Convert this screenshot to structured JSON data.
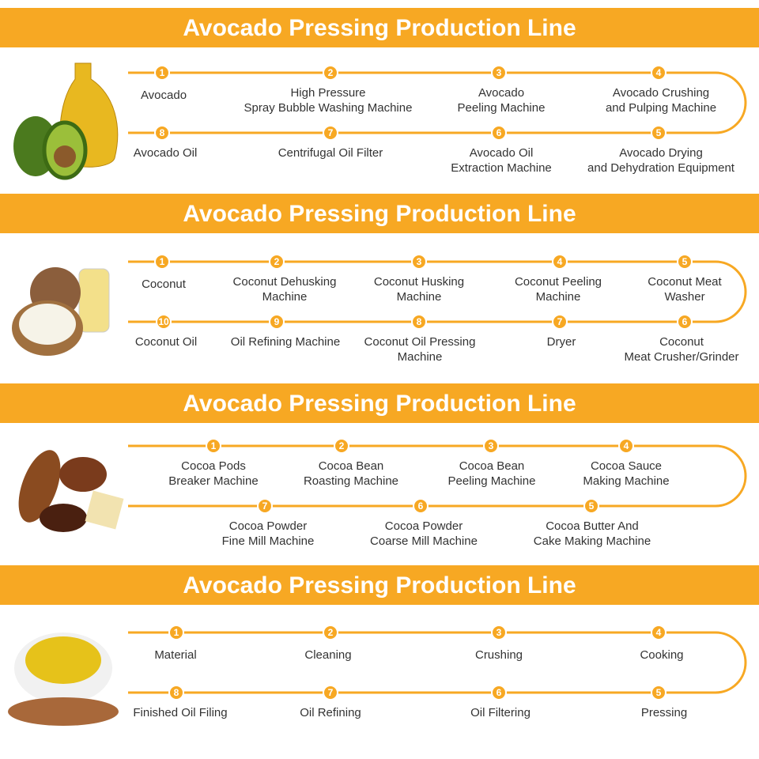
{
  "sections": [
    {
      "title": "Avocado Pressing Production Line",
      "steps": [
        {
          "number": 1,
          "lines": [
            "Avocado"
          ]
        },
        {
          "number": 2,
          "lines": [
            "High Pressure",
            "Spray Bubble Washing Machine"
          ]
        },
        {
          "number": 3,
          "lines": [
            "Avocado",
            "Peeling Machine"
          ]
        },
        {
          "number": 4,
          "lines": [
            "Avocado Crushing",
            "and Pulping Machine"
          ]
        },
        {
          "number": 5,
          "lines": [
            "Avocado Drying",
            "and Dehydration Equipment"
          ]
        },
        {
          "number": 6,
          "lines": [
            "Avocado Oil",
            "Extraction Machine"
          ]
        },
        {
          "number": 7,
          "lines": [
            "Centrifugal Oil Filter"
          ]
        },
        {
          "number": 8,
          "lines": [
            "Avocado Oil"
          ]
        }
      ]
    },
    {
      "title": "Avocado Pressing Production Line",
      "steps": [
        {
          "number": 1,
          "lines": [
            "Coconut"
          ]
        },
        {
          "number": 2,
          "lines": [
            "Coconut Dehusking",
            "Machine"
          ]
        },
        {
          "number": 3,
          "lines": [
            "Coconut Husking",
            "Machine"
          ]
        },
        {
          "number": 4,
          "lines": [
            "Coconut Peeling",
            "Machine"
          ]
        },
        {
          "number": 5,
          "lines": [
            "Coconut Meat",
            "Washer"
          ]
        },
        {
          "number": 6,
          "lines": [
            "Coconut",
            "Meat Crusher/Grinder"
          ]
        },
        {
          "number": 7,
          "lines": [
            "Dryer"
          ]
        },
        {
          "number": 8,
          "lines": [
            "Coconut Oil Pressing",
            "Machine"
          ]
        },
        {
          "number": 9,
          "lines": [
            "Oil Refining Machine"
          ]
        },
        {
          "number": 10,
          "lines": [
            "Coconut Oil"
          ]
        }
      ]
    },
    {
      "title": "Avocado Pressing Production Line",
      "steps": [
        {
          "number": 1,
          "lines": [
            "Cocoa Pods",
            "Breaker Machine"
          ]
        },
        {
          "number": 2,
          "lines": [
            "Cocoa Bean",
            "Roasting Machine"
          ]
        },
        {
          "number": 3,
          "lines": [
            "Cocoa Bean",
            "Peeling Machine"
          ]
        },
        {
          "number": 4,
          "lines": [
            "Cocoa Sauce",
            "Making Machine"
          ]
        },
        {
          "number": 5,
          "lines": [
            "Cocoa Butter And",
            "Cake Making Machine"
          ]
        },
        {
          "number": 6,
          "lines": [
            "Cocoa Powder",
            "Coarse Mill Machine"
          ]
        },
        {
          "number": 7,
          "lines": [
            "Cocoa Powder",
            "Fine Mill Machine"
          ]
        }
      ]
    },
    {
      "title": "Avocado Pressing Production Line",
      "steps": [
        {
          "number": 1,
          "lines": [
            "Material"
          ]
        },
        {
          "number": 2,
          "lines": [
            "Cleaning"
          ]
        },
        {
          "number": 3,
          "lines": [
            "Crushing"
          ]
        },
        {
          "number": 4,
          "lines": [
            "Cooking"
          ]
        },
        {
          "number": 5,
          "lines": [
            "Pressing"
          ]
        },
        {
          "number": 6,
          "lines": [
            "Oil Filtering"
          ]
        },
        {
          "number": 7,
          "lines": [
            "Oil Refining"
          ]
        },
        {
          "number": 8,
          "lines": [
            "Finished Oil Filing"
          ]
        }
      ]
    }
  ]
}
